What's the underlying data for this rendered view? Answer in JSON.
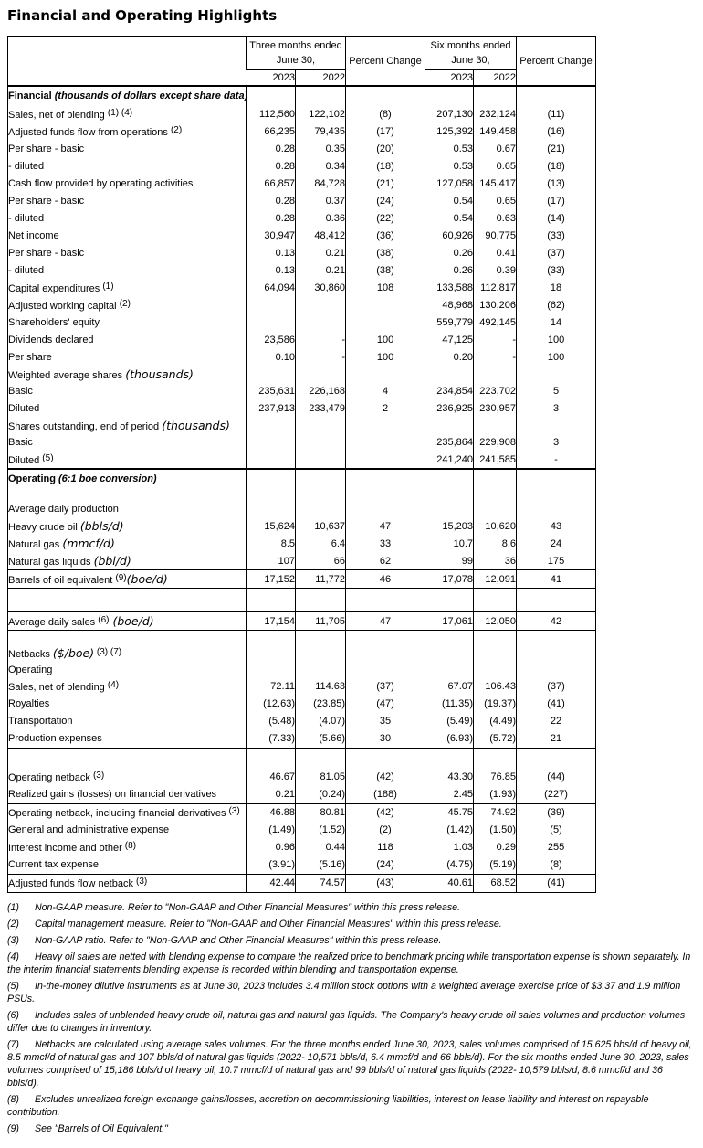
{
  "title": "Financial and Operating Highlights",
  "table": {
    "header": {
      "groups": [
        {
          "line1": "Three months ended",
          "line2": "June 30,",
          "years": [
            "2023",
            "2022"
          ],
          "pct": "Percent Change"
        },
        {
          "line1": "Six months ended",
          "line2": "June 30,",
          "years": [
            "2023",
            "2022"
          ],
          "pct": "Percent Change"
        }
      ]
    },
    "rows": [
      {
        "t": "section",
        "seg": [
          [
            "b",
            "Financial "
          ],
          [
            "bi",
            "(thousands of dollars except share data)"
          ]
        ],
        "cells": [
          "",
          "",
          "",
          "",
          "",
          ""
        ]
      },
      {
        "seg": [
          [
            "x",
            "Sales, net of blending "
          ],
          [
            "s",
            "(1) (4)"
          ]
        ],
        "cells": [
          "112,560",
          "122,102",
          "(8)",
          "207,130",
          "232,124",
          "(11)"
        ]
      },
      {
        "seg": [
          [
            "x",
            "Adjusted funds flow from operations "
          ],
          [
            "s",
            "(2)"
          ]
        ],
        "cells": [
          "66,235",
          "79,435",
          "(17)",
          "125,392",
          "149,458",
          "(16)"
        ]
      },
      {
        "ind": 1,
        "seg": [
          [
            "x",
            "Per share - basic"
          ]
        ],
        "cells": [
          "0.28",
          "0.35",
          "(20)",
          "0.53",
          "0.67",
          "(21)"
        ]
      },
      {
        "ind": 2,
        "seg": [
          [
            "x",
            "- diluted"
          ]
        ],
        "cells": [
          "0.28",
          "0.34",
          "(18)",
          "0.53",
          "0.65",
          "(18)"
        ]
      },
      {
        "seg": [
          [
            "x",
            "Cash flow provided by operating activities"
          ]
        ],
        "cells": [
          "66,857",
          "84,728",
          "(21)",
          "127,058",
          "145,417",
          "(13)"
        ]
      },
      {
        "ind": 1,
        "seg": [
          [
            "x",
            "Per share - basic"
          ]
        ],
        "cells": [
          "0.28",
          "0.37",
          "(24)",
          "0.54",
          "0.65",
          "(17)"
        ]
      },
      {
        "ind": 2,
        "seg": [
          [
            "x",
            "- diluted"
          ]
        ],
        "cells": [
          "0.28",
          "0.36",
          "(22)",
          "0.54",
          "0.63",
          "(14)"
        ]
      },
      {
        "seg": [
          [
            "x",
            "Net income"
          ]
        ],
        "cells": [
          "30,947",
          "48,412",
          "(36)",
          "60,926",
          "90,775",
          "(33)"
        ]
      },
      {
        "ind": 1,
        "seg": [
          [
            "x",
            "Per share - basic"
          ]
        ],
        "cells": [
          "0.13",
          "0.21",
          "(38)",
          "0.26",
          "0.41",
          "(37)"
        ]
      },
      {
        "ind": 2,
        "seg": [
          [
            "x",
            "- diluted"
          ]
        ],
        "cells": [
          "0.13",
          "0.21",
          "(38)",
          "0.26",
          "0.39",
          "(33)"
        ]
      },
      {
        "seg": [
          [
            "x",
            "Capital expenditures "
          ],
          [
            "s",
            "(1)"
          ]
        ],
        "cells": [
          "64,094",
          "30,860",
          "108",
          "133,588",
          "112,817",
          "18"
        ]
      },
      {
        "seg": [
          [
            "x",
            "Adjusted working capital "
          ],
          [
            "s",
            "(2)"
          ]
        ],
        "cells": [
          "",
          "",
          "",
          "48,968",
          "130,206",
          "(62)"
        ]
      },
      {
        "seg": [
          [
            "x",
            "Shareholders' equity"
          ]
        ],
        "cells": [
          "",
          "",
          "",
          "559,779",
          "492,145",
          "14"
        ]
      },
      {
        "seg": [
          [
            "x",
            "Dividends declared"
          ]
        ],
        "cells": [
          "23,586",
          "-",
          "100",
          "47,125",
          "-",
          "100"
        ]
      },
      {
        "ind": 1,
        "seg": [
          [
            "x",
            "Per share"
          ]
        ],
        "cells": [
          "0.10",
          "-",
          "100",
          "0.20",
          "-",
          "100"
        ]
      },
      {
        "t": "sub",
        "seg": [
          [
            "x",
            "Weighted average shares "
          ],
          [
            "u",
            "(thousands)"
          ]
        ],
        "cells": [
          "",
          "",
          "",
          "",
          "",
          ""
        ]
      },
      {
        "ind": 1,
        "seg": [
          [
            "x",
            "Basic"
          ]
        ],
        "cells": [
          "235,631",
          "226,168",
          "4",
          "234,854",
          "223,702",
          "5"
        ]
      },
      {
        "ind": 1,
        "seg": [
          [
            "x",
            "Diluted"
          ]
        ],
        "cells": [
          "237,913",
          "233,479",
          "2",
          "236,925",
          "230,957",
          "3"
        ]
      },
      {
        "t": "sub",
        "seg": [
          [
            "x",
            "Shares outstanding, end of period "
          ],
          [
            "u",
            "(thousands)"
          ]
        ],
        "cells": [
          "",
          "",
          "",
          "",
          "",
          ""
        ]
      },
      {
        "ind": 1,
        "seg": [
          [
            "x",
            "Basic"
          ]
        ],
        "cells": [
          "",
          "",
          "",
          "235,864",
          "229,908",
          "3"
        ]
      },
      {
        "ind": 1,
        "seg": [
          [
            "x",
            "Diluted "
          ],
          [
            "s",
            "(5)"
          ]
        ],
        "cells": [
          "",
          "",
          "",
          "241,240",
          "241,585",
          "-"
        ]
      },
      {
        "t": "section",
        "b": "bt2",
        "seg": [
          [
            "b",
            "Operating "
          ],
          [
            "bi",
            "(6:1 boe conversion)"
          ]
        ],
        "cells": [
          "",
          "",
          "",
          "",
          "",
          ""
        ]
      },
      {
        "t": "blank",
        "h": 14,
        "cells": [
          "",
          "",
          "",
          "",
          "",
          ""
        ]
      },
      {
        "t": "sub",
        "seg": [
          [
            "x",
            "Average daily production"
          ]
        ],
        "cells": [
          "",
          "",
          "",
          "",
          "",
          ""
        ]
      },
      {
        "ind": "s",
        "seg": [
          [
            "x",
            "Heavy crude oil "
          ],
          [
            "u",
            "(bbls/d)"
          ]
        ],
        "cells": [
          "15,624",
          "10,637",
          "47",
          "15,203",
          "10,620",
          "43"
        ]
      },
      {
        "ind": "s",
        "seg": [
          [
            "x",
            "Natural gas "
          ],
          [
            "u",
            "(mmcf/d)"
          ]
        ],
        "cells": [
          "8.5",
          "6.4",
          "33",
          "10.7",
          "8.6",
          "24"
        ]
      },
      {
        "ind": "s",
        "seg": [
          [
            "x",
            "Natural gas liquids "
          ],
          [
            "u",
            "(bbl/d)"
          ]
        ],
        "cells": [
          "107",
          "66",
          "62",
          "99",
          "36",
          "175"
        ]
      },
      {
        "ind": "s",
        "b": "bt bb",
        "seg": [
          [
            "x",
            "Barrels of oil equivalent "
          ],
          [
            "s",
            "(9)"
          ],
          [
            "u",
            "(boe/d)"
          ]
        ],
        "cells": [
          "17,152",
          "11,772",
          "46",
          "17,078",
          "12,091",
          "41"
        ]
      },
      {
        "t": "blank",
        "h": 26,
        "cells": [
          "",
          "",
          "",
          "",
          "",
          ""
        ]
      },
      {
        "b": "bt bb",
        "seg": [
          [
            "x",
            "Average daily sales "
          ],
          [
            "s",
            "(6)"
          ],
          [
            "u",
            " (boe/d)"
          ]
        ],
        "cells": [
          "17,154",
          "11,705",
          "47",
          "17,061",
          "12,050",
          "42"
        ]
      },
      {
        "t": "blank",
        "h": 16,
        "cells": [
          "",
          "",
          "",
          "",
          "",
          ""
        ]
      },
      {
        "t": "sub",
        "seg": [
          [
            "x",
            "Netbacks "
          ],
          [
            "u",
            "($/boe)"
          ],
          [
            "s",
            " (3) (7)"
          ]
        ],
        "cells": [
          "",
          "",
          "",
          "",
          "",
          ""
        ]
      },
      {
        "t": "sub",
        "ind": "s",
        "seg": [
          [
            "x",
            "Operating"
          ]
        ],
        "cells": [
          "",
          "",
          "",
          "",
          "",
          ""
        ]
      },
      {
        "ind": 1,
        "seg": [
          [
            "x",
            "Sales, net of blending "
          ],
          [
            "s",
            "(4)"
          ]
        ],
        "cells": [
          "72.11",
          "114.63",
          "(37)",
          "67.07",
          "106.43",
          "(37)"
        ]
      },
      {
        "ind": 1,
        "seg": [
          [
            "x",
            "Royalties"
          ]
        ],
        "cells": [
          "(12.63)",
          "(23.85)",
          "(47)",
          "(11.35)",
          "(19.37)",
          "(41)"
        ]
      },
      {
        "ind": 1,
        "seg": [
          [
            "x",
            "Transportation"
          ]
        ],
        "cells": [
          "(5.48)",
          "(4.07)",
          "35",
          "(5.49)",
          "(4.49)",
          "22"
        ]
      },
      {
        "ind": 1,
        "b": "bb2",
        "seg": [
          [
            "x",
            "Production expenses"
          ]
        ],
        "cells": [
          "(7.33)",
          "(5.66)",
          "30",
          "(6.93)",
          "(5.72)",
          "21"
        ]
      },
      {
        "t": "blank",
        "h": 22,
        "cells": [
          "",
          "",
          "",
          "",
          "",
          ""
        ]
      },
      {
        "seg": [
          [
            "x",
            "Operating netback "
          ],
          [
            "s",
            "(3)"
          ]
        ],
        "cells": [
          "46.67",
          "81.05",
          "(42)",
          "43.30",
          "76.85",
          "(44)"
        ]
      },
      {
        "ind": 1,
        "b": "bb",
        "seg": [
          [
            "x",
            "Realized gains (losses) on financial derivatives"
          ]
        ],
        "cells": [
          "0.21",
          "(0.24)",
          "(188)",
          "2.45",
          "(1.93)",
          "(227)"
        ]
      },
      {
        "seg": [
          [
            "x",
            "Operating netback, including financial derivatives "
          ],
          [
            "s",
            "(3)"
          ]
        ],
        "cells": [
          "46.88",
          "80.81",
          "(42)",
          "45.75",
          "74.92",
          "(39)"
        ]
      },
      {
        "ind": 1,
        "seg": [
          [
            "x",
            "General and administrative expense"
          ]
        ],
        "cells": [
          "(1.49)",
          "(1.52)",
          "(2)",
          "(1.42)",
          "(1.50)",
          "(5)"
        ]
      },
      {
        "ind": 1,
        "seg": [
          [
            "x",
            "Interest income and other "
          ],
          [
            "s",
            "(8)"
          ]
        ],
        "cells": [
          "0.96",
          "0.44",
          "118",
          "1.03",
          "0.29",
          "255"
        ]
      },
      {
        "ind": 1,
        "b": "bb",
        "seg": [
          [
            "x",
            "Current tax expense"
          ]
        ],
        "cells": [
          "(3.91)",
          "(5.16)",
          "(24)",
          "(4.75)",
          "(5.19)",
          "(8)"
        ]
      },
      {
        "seg": [
          [
            "x",
            "Adjusted funds flow netback "
          ],
          [
            "s",
            "(3)"
          ]
        ],
        "cells": [
          "42.44",
          "74.57",
          "(43)",
          "40.61",
          "68.52",
          "(41)"
        ]
      }
    ]
  },
  "footnotes": [
    {
      "num": "(1)",
      "text": "Non-GAAP measure. Refer to \"Non-GAAP and Other Financial Measures\" within this press release."
    },
    {
      "num": "(2)",
      "text": "Capital management measure. Refer to \"Non-GAAP and Other Financial Measures\" within this press release."
    },
    {
      "num": "(3)",
      "text": "Non-GAAP ratio. Refer to \"Non-GAAP and Other Financial Measures\" within this press release."
    },
    {
      "num": "(4)",
      "text": "Heavy oil sales are netted with blending expense to compare the realized price to benchmark pricing while transportation expense is shown separately. In the interim financial statements blending expense is recorded within blending and transportation expense."
    },
    {
      "num": "(5)",
      "text": "In-the-money dilutive instruments as at June 30, 2023 includes 3.4 million stock options with a weighted average exercise price of $3.37 and 1.9 million PSUs."
    },
    {
      "num": "(6)",
      "text": "Includes sales of unblended heavy crude oil, natural gas and natural gas liquids. The Company's heavy crude oil sales volumes and production volumes differ due to changes in inventory."
    },
    {
      "num": "(7)",
      "text": "Netbacks are calculated using average sales volumes. For the three months ended June 30, 2023, sales volumes comprised of 15,625 bbs/d of heavy oil, 8.5 mmcf/d of natural gas and 107 bbls/d of natural gas liquids (2022- 10,571 bbls/d, 6.4 mmcf/d and 66 bbls/d). For the six months ended June 30, 2023, sales volumes comprised of 15,186 bbls/d of heavy oil, 10.7 mmcf/d of natural gas and 99 bbls/d of natural gas liquids (2022- 10,579 bbls/d, 8.6 mmcf/d and 36 bbls/d)."
    },
    {
      "num": "(8)",
      "text": "Excludes unrealized foreign exchange gains/losses, accretion on decommissioning liabilities, interest on lease liability and interest on repayable contribution."
    },
    {
      "num": "(9)",
      "text": "See \"Barrels of Oil Equivalent.\""
    }
  ]
}
